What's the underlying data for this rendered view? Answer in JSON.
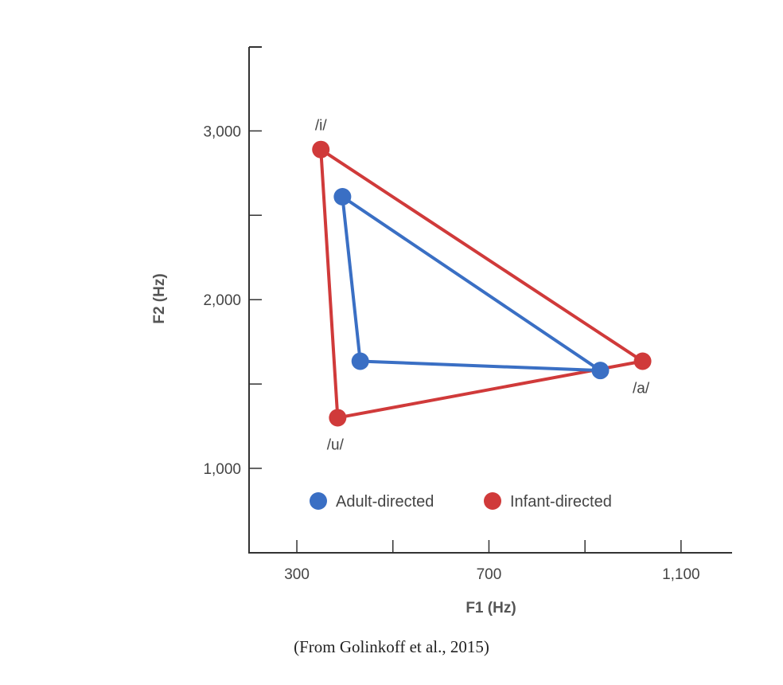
{
  "chart_data": {
    "type": "line",
    "title": "",
    "xlabel": "F1 (Hz)",
    "ylabel": "F2 (Hz)",
    "xlim": [
      100,
      1100
    ],
    "ylim": [
      500,
      3500
    ],
    "x_ticks": [
      100,
      300,
      500,
      700,
      900,
      1100
    ],
    "x_tick_labels": [
      "",
      "300",
      "",
      "700",
      "",
      "1,100"
    ],
    "y_ticks": [
      1000,
      1500,
      2000,
      2500,
      3000
    ],
    "y_tick_labels": [
      "1,000",
      "",
      "2,000",
      "",
      "3,000"
    ],
    "legend_position": "bottom",
    "series": [
      {
        "name": "Adult-directed",
        "color": "#3a6fc4",
        "points": [
          {
            "vowel": "/i/",
            "x": 395,
            "y": 2610
          },
          {
            "vowel": "/a/",
            "x": 932,
            "y": 1580
          },
          {
            "vowel": "/u/",
            "x": 432,
            "y": 1635
          }
        ]
      },
      {
        "name": "Infant-directed",
        "color": "#d03a3a",
        "points": [
          {
            "vowel": "/i/",
            "x": 350,
            "y": 2890
          },
          {
            "vowel": "/a/",
            "x": 1020,
            "y": 1635
          },
          {
            "vowel": "/u/",
            "x": 385,
            "y": 1300
          }
        ]
      }
    ],
    "vowel_labels": [
      {
        "text": "/i/",
        "x": 350,
        "y": 2890
      },
      {
        "text": "/a/",
        "x": 1020,
        "y": 1635
      },
      {
        "text": "/u/",
        "x": 385,
        "y": 1300
      }
    ],
    "source": "(From Golinkoff et al., 2015)"
  }
}
